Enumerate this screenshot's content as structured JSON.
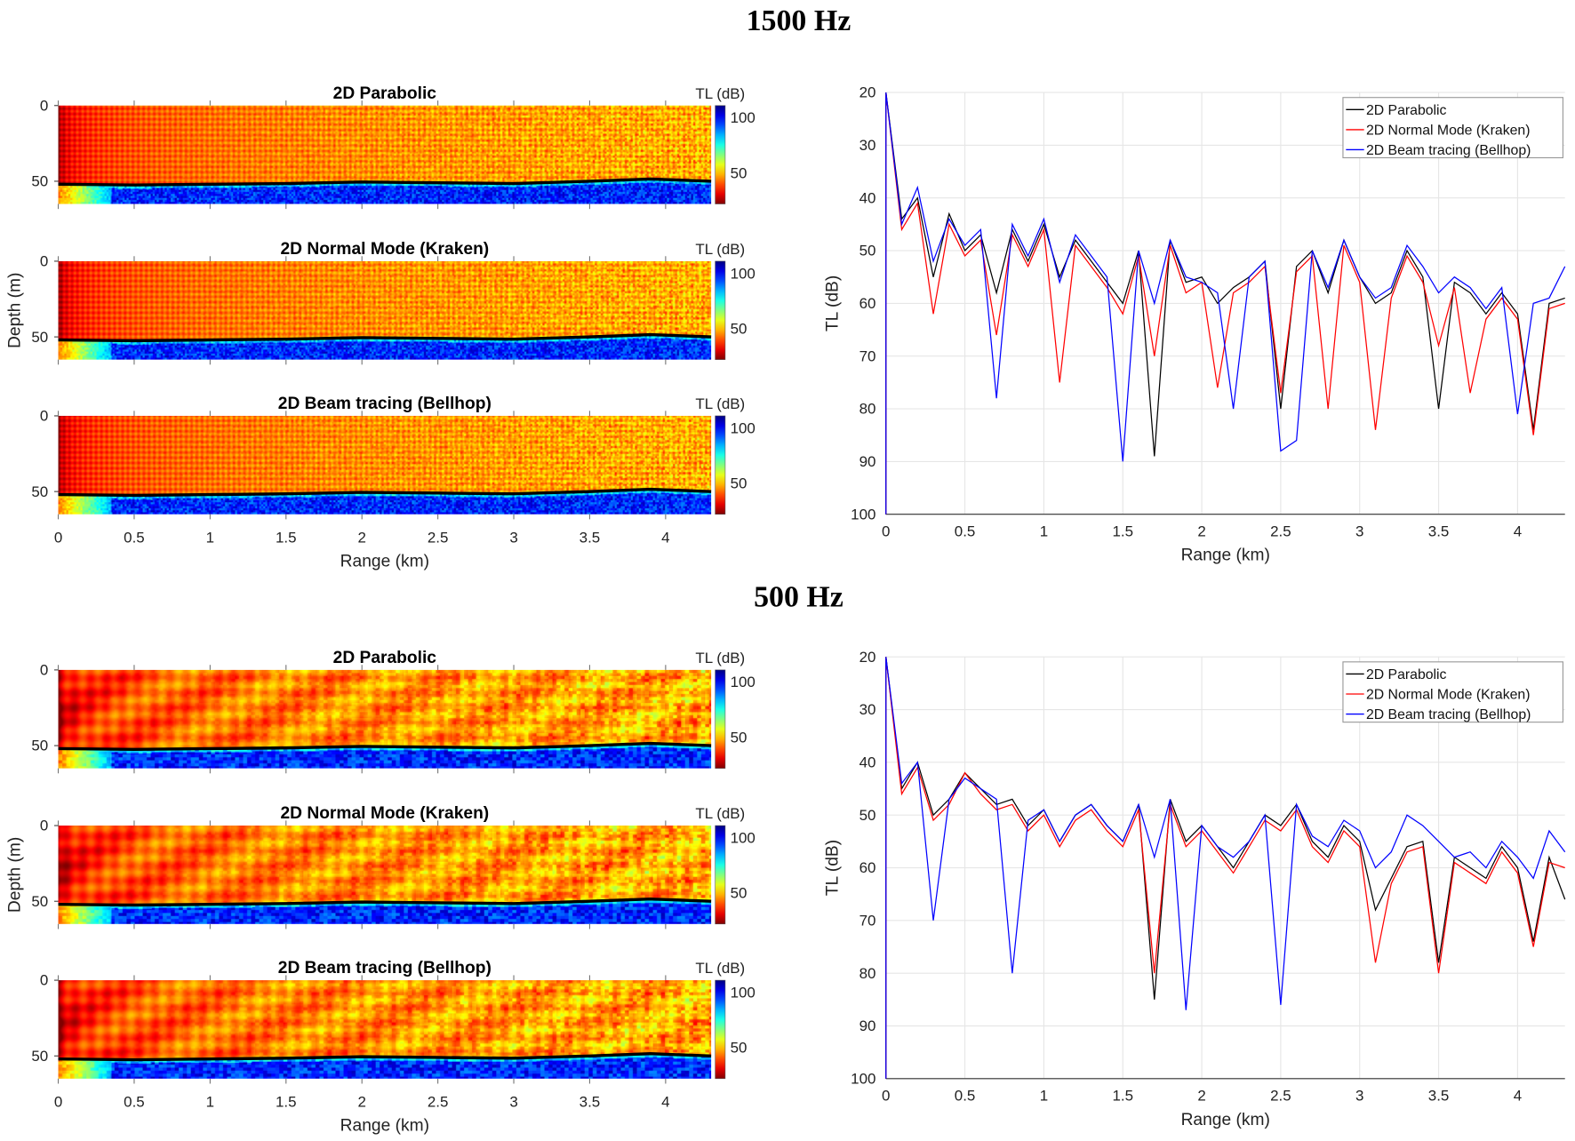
{
  "sections": [
    {
      "title": "1500 Hz"
    },
    {
      "title": "500 Hz"
    }
  ],
  "chart_data": [
    {
      "section": "1500 Hz",
      "type": "heatmap",
      "panels": [
        {
          "title": "2D Parabolic",
          "colorbar_label": "TL (dB)"
        },
        {
          "title": "2D Normal Mode (Kraken)",
          "colorbar_label": "TL (dB)",
          "ylabel": "Depth (m)"
        },
        {
          "title": "2D Beam tracing (Bellhop)",
          "colorbar_label": "TL (dB)",
          "xlabel": "Range (km)"
        }
      ],
      "frequency_hz": 1500,
      "xlim": [
        0,
        4.3
      ],
      "ylim": [
        0,
        65
      ],
      "xticks": [
        "0",
        "0.5",
        "1",
        "1.5",
        "2",
        "2.5",
        "3",
        "3.5",
        "4"
      ],
      "yticks": [
        "0",
        "50"
      ],
      "colorbar_ticks": [
        "50",
        "100"
      ],
      "clim": [
        22,
        111
      ],
      "colormap": "jet-reversed",
      "bathymetry": {
        "range_km": [
          0,
          0.5,
          1,
          1.5,
          2,
          2.5,
          3,
          3.5,
          3.9,
          4.3
        ],
        "depth_m": [
          52,
          52.5,
          52,
          51.5,
          50.5,
          51,
          51.5,
          50,
          48.5,
          50
        ]
      }
    },
    {
      "section": "1500 Hz",
      "type": "line",
      "xlabel": "Range (km)",
      "ylabel": "TL (dB)",
      "xlim": [
        0,
        4.3
      ],
      "ylim": [
        20,
        100
      ],
      "y_reversed": true,
      "grid": true,
      "legend": "top-right",
      "xticks": [
        "0",
        "0.5",
        "1",
        "1.5",
        "2",
        "2.5",
        "3",
        "3.5",
        "4"
      ],
      "yticks": [
        "20",
        "30",
        "40",
        "50",
        "60",
        "70",
        "80",
        "90",
        "100"
      ],
      "x": [
        0,
        0.1,
        0.2,
        0.3,
        0.4,
        0.5,
        0.6,
        0.7,
        0.8,
        0.9,
        1.0,
        1.1,
        1.2,
        1.3,
        1.4,
        1.5,
        1.6,
        1.7,
        1.8,
        1.9,
        2.0,
        2.1,
        2.2,
        2.3,
        2.4,
        2.5,
        2.6,
        2.7,
        2.8,
        2.9,
        3.0,
        3.1,
        3.2,
        3.3,
        3.4,
        3.5,
        3.6,
        3.7,
        3.8,
        3.9,
        4.0,
        4.1,
        4.2,
        4.3
      ],
      "series": [
        {
          "name": "2D Parabolic",
          "color": "#000000",
          "values": [
            20,
            44,
            40,
            55,
            43,
            50,
            47,
            58,
            46,
            52,
            45,
            55,
            48,
            52,
            56,
            60,
            50,
            89,
            48,
            56,
            55,
            60,
            57,
            55,
            52,
            80,
            53,
            50,
            58,
            48,
            55,
            60,
            58,
            50,
            55,
            80,
            56,
            58,
            62,
            58,
            62,
            84,
            60,
            59
          ]
        },
        {
          "name": "2D Normal Mode (Kraken)",
          "color": "#ff0000",
          "values": [
            20,
            46,
            41,
            62,
            45,
            51,
            48,
            66,
            47,
            53,
            46,
            75,
            49,
            53,
            57,
            62,
            51,
            70,
            49,
            58,
            56,
            76,
            58,
            56,
            53,
            77,
            54,
            51,
            80,
            49,
            56,
            84,
            59,
            51,
            56,
            68,
            57,
            77,
            63,
            59,
            63,
            85,
            61,
            60
          ]
        },
        {
          "name": "2D Beam tracing (Bellhop)",
          "color": "#0000ff",
          "values": [
            20,
            45,
            38,
            52,
            44,
            49,
            46,
            78,
            45,
            51,
            44,
            56,
            47,
            51,
            55,
            90,
            50,
            60,
            48,
            55,
            56,
            58,
            80,
            55,
            52,
            88,
            86,
            50,
            57,
            48,
            55,
            59,
            57,
            49,
            53,
            58,
            55,
            57,
            61,
            57,
            81,
            60,
            59,
            53
          ]
        }
      ]
    },
    {
      "section": "500 Hz",
      "type": "heatmap",
      "panels": [
        {
          "title": "2D Parabolic",
          "colorbar_label": "TL (dB)"
        },
        {
          "title": "2D Normal Mode (Kraken)",
          "colorbar_label": "TL (dB)",
          "ylabel": "Depth (m)"
        },
        {
          "title": "2D Beam tracing (Bellhop)",
          "colorbar_label": "TL (dB)",
          "xlabel": "Range (km)"
        }
      ],
      "frequency_hz": 500,
      "xlim": [
        0,
        4.3
      ],
      "ylim": [
        0,
        65
      ],
      "xticks": [
        "0",
        "0.5",
        "1",
        "1.5",
        "2",
        "2.5",
        "3",
        "3.5",
        "4"
      ],
      "yticks": [
        "0",
        "50"
      ],
      "colorbar_ticks": [
        "50",
        "100"
      ],
      "clim": [
        22,
        111
      ],
      "colormap": "jet-reversed",
      "bathymetry": {
        "range_km": [
          0,
          0.5,
          1,
          1.5,
          2,
          2.5,
          3,
          3.5,
          3.9,
          4.3
        ],
        "depth_m": [
          52,
          52.5,
          52,
          51.5,
          50.5,
          51,
          51.5,
          50,
          48.5,
          50
        ]
      }
    },
    {
      "section": "500 Hz",
      "type": "line",
      "xlabel": "Range (km)",
      "ylabel": "TL (dB)",
      "xlim": [
        0,
        4.3
      ],
      "ylim": [
        20,
        100
      ],
      "y_reversed": true,
      "grid": true,
      "legend": "top-right",
      "xticks": [
        "0",
        "0.5",
        "1",
        "1.5",
        "2",
        "2.5",
        "3",
        "3.5",
        "4"
      ],
      "yticks": [
        "20",
        "30",
        "40",
        "50",
        "60",
        "70",
        "80",
        "90",
        "100"
      ],
      "x": [
        0,
        0.1,
        0.2,
        0.3,
        0.4,
        0.5,
        0.6,
        0.7,
        0.8,
        0.9,
        1.0,
        1.1,
        1.2,
        1.3,
        1.4,
        1.5,
        1.6,
        1.7,
        1.8,
        1.9,
        2.0,
        2.1,
        2.2,
        2.3,
        2.4,
        2.5,
        2.6,
        2.7,
        2.8,
        2.9,
        3.0,
        3.1,
        3.2,
        3.3,
        3.4,
        3.5,
        3.6,
        3.7,
        3.8,
        3.9,
        4.0,
        4.1,
        4.2,
        4.3
      ],
      "series": [
        {
          "name": "2D Parabolic",
          "color": "#000000",
          "values": [
            20,
            45,
            40,
            50,
            47,
            42,
            45,
            48,
            47,
            52,
            49,
            55,
            50,
            48,
            52,
            55,
            48,
            85,
            47,
            55,
            52,
            56,
            60,
            55,
            50,
            52,
            48,
            55,
            58,
            52,
            55,
            68,
            62,
            56,
            55,
            78,
            58,
            60,
            62,
            56,
            60,
            74,
            58,
            66
          ]
        },
        {
          "name": "2D Normal Mode (Kraken)",
          "color": "#ff0000",
          "values": [
            20,
            46,
            41,
            51,
            48,
            42,
            46,
            49,
            48,
            53,
            50,
            56,
            51,
            49,
            53,
            56,
            49,
            80,
            48,
            56,
            53,
            57,
            61,
            56,
            51,
            53,
            49,
            56,
            59,
            53,
            56,
            78,
            63,
            57,
            56,
            80,
            59,
            61,
            63,
            57,
            61,
            75,
            59,
            60
          ]
        },
        {
          "name": "2D Beam tracing (Bellhop)",
          "color": "#0000ff",
          "values": [
            20,
            44,
            40,
            70,
            47,
            43,
            45,
            47,
            80,
            51,
            49,
            55,
            50,
            48,
            52,
            55,
            48,
            58,
            47,
            87,
            52,
            56,
            58,
            55,
            50,
            86,
            48,
            54,
            56,
            51,
            53,
            60,
            57,
            50,
            52,
            55,
            58,
            57,
            60,
            55,
            58,
            62,
            53,
            57
          ]
        }
      ]
    }
  ]
}
